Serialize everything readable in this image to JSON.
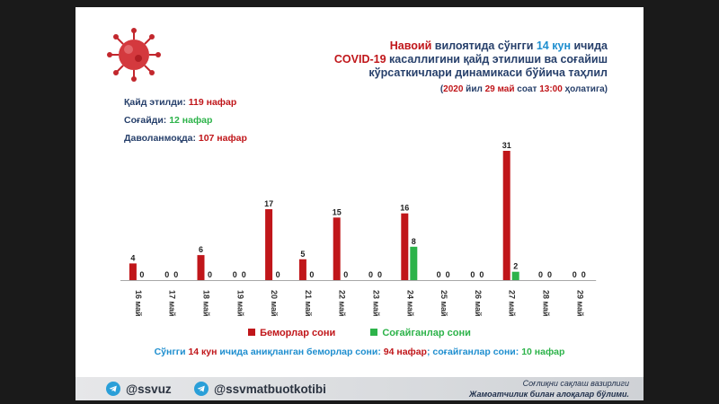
{
  "header": {
    "title_line1_a": "Навоий",
    "title_line1_b": " вилоятида сўнгги ",
    "title_line1_c": "14 кун",
    "title_line1_d": " ичида",
    "title_line2_a": "COVID-19",
    "title_line2_b": " касаллигини қайд этилиши ва соғайиш",
    "title_line3": "кўрсаткичлари динамикаси бўйича таҳлил",
    "subtitle_open": "(",
    "subtitle_year": "2020",
    "subtitle_mid1": " йил ",
    "subtitle_day": "29",
    "subtitle_mid2": " май",
    "subtitle_mid3": " соат ",
    "subtitle_time": "13:00",
    "subtitle_end": " ҳолатига)"
  },
  "stats": {
    "registered_label": "Қайд этилди: ",
    "registered_value": "119 нафар",
    "recovered_label": "Соғайди: ",
    "recovered_value": "12 нафар",
    "treatment_label": "Даволанмоқда: ",
    "treatment_value": "107 нафар"
  },
  "summary": {
    "part1": "Сўнгги ",
    "part2": "14 кун",
    "part3": " ичида аниқланган беморлар сони: ",
    "patients_value": "94 нафар",
    "part4": "; соғайганлар сони: ",
    "recovered_value": "10 нафар"
  },
  "footer": {
    "handle1": "@ssvuz",
    "handle2": "@ssvmatbuotkotibi",
    "ministry_line1": "Соғлиқни сақлаш вазирлиги",
    "ministry_line2": "Жамоатчилик билан алоқалар бўлими."
  },
  "colors": {
    "patients": "#c0161a",
    "recovered": "#2db34a",
    "accent_blue": "#1e8ecf",
    "title_dark": "#27406b"
  },
  "icons": [
    "coronavirus-icon",
    "telegram-icon"
  ],
  "chart_data": {
    "type": "bar",
    "categories": [
      "16 май",
      "17 май",
      "18 май",
      "19 май",
      "20 май",
      "21 май",
      "22 май",
      "23 май",
      "24 май",
      "25 май",
      "26 май",
      "27 май",
      "28 май",
      "29 май"
    ],
    "series": [
      {
        "name": "Беморлар сони",
        "values": [
          4,
          0,
          6,
          0,
          17,
          5,
          15,
          0,
          16,
          0,
          0,
          31,
          0,
          0
        ]
      },
      {
        "name": "Соғайганлар сони",
        "values": [
          0,
          0,
          0,
          0,
          0,
          0,
          0,
          0,
          8,
          0,
          0,
          2,
          0,
          0
        ]
      }
    ],
    "title": "",
    "xlabel": "",
    "ylabel": "",
    "ylim": [
      0,
      31
    ],
    "grid": false,
    "legend": "bottom"
  }
}
